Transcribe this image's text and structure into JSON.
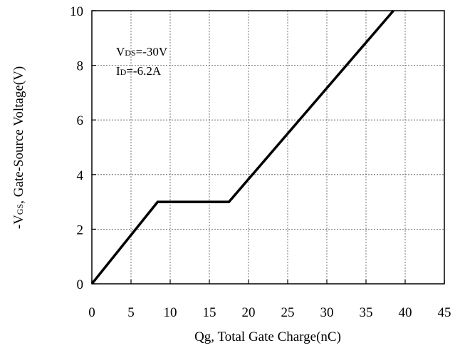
{
  "chart_data": {
    "type": "line",
    "xlabel": "Qg, Total Gate Charge(nC)",
    "ylabel": {
      "prefix": "-V",
      "subscript": "GS",
      "suffix": ", Gate-Source Voltage(V)"
    },
    "xlim": [
      0,
      45
    ],
    "ylim": [
      0,
      10
    ],
    "x_ticks": [
      "0",
      "5",
      "10",
      "15",
      "20",
      "25",
      "30",
      "35",
      "40",
      "45"
    ],
    "y_ticks": [
      "0",
      "2",
      "4",
      "6",
      "8",
      "10"
    ],
    "grid": true,
    "annotations": [
      {
        "main": "V",
        "sub": "DS",
        "rest": "=-30V"
      },
      {
        "main": "I",
        "sub": "D",
        "rest": "=-6.2A"
      }
    ],
    "series": [
      {
        "x": [
          0,
          8.4,
          17.5,
          38.5
        ],
        "y": [
          0,
          3.0,
          3.0,
          10
        ]
      }
    ]
  }
}
